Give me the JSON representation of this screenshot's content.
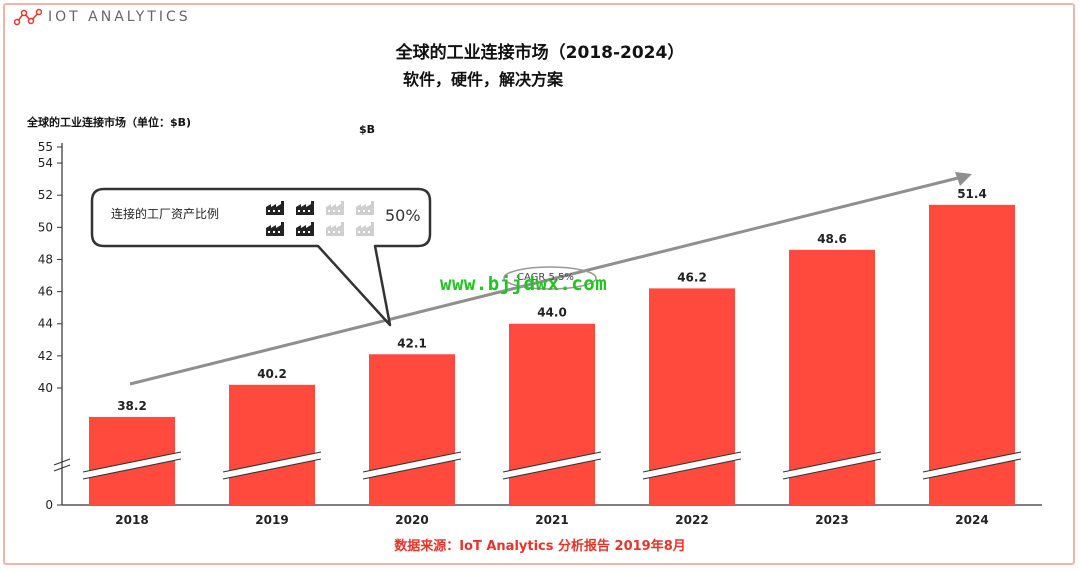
{
  "brand": {
    "logo_text": "IOT ANALYTICS",
    "logo_icon": "network-dots-icon"
  },
  "header": {
    "title": "全球的工业连接市场（2018-2024）",
    "subtitle": "软件，硬件，解决方案"
  },
  "unit_label": "全球的工业连接市场（单位：$B)",
  "unit_small": "$B",
  "callout": {
    "text": "连接的工厂资产比例",
    "percent": "50%",
    "icon": "factory-icon"
  },
  "cagr": {
    "label": "CAGR 5.5%"
  },
  "watermark": "www.bjjdwx.com",
  "source": "数据来源：IoT Analytics 分析报告 2019年8月",
  "colors": {
    "bar": "#ff4a3d",
    "arrow": "#8f8f8f",
    "source": "#e8332a",
    "watermark": "#22c422"
  },
  "chart_data": {
    "type": "bar",
    "title": "全球的工业连接市场（2018-2024）",
    "subtitle": "软件，硬件，解决方案",
    "ylabel": "全球的工业连接市场（单位：$B)",
    "categories": [
      "2018",
      "2019",
      "2020",
      "2021",
      "2022",
      "2023",
      "2024"
    ],
    "values": [
      38.2,
      40.2,
      42.1,
      44.0,
      46.2,
      48.6,
      51.4
    ],
    "data_labels": [
      "38.2",
      "40.2",
      "42.1",
      "44.0",
      "46.2",
      "48.6",
      "51.4"
    ],
    "y_ticks": [
      0,
      40,
      42,
      44,
      46,
      48,
      50,
      52,
      54,
      55
    ],
    "y_tick_labels": [
      "0",
      "40",
      "42",
      "44",
      "46",
      "48",
      "50",
      "52",
      "54",
      "55"
    ],
    "ylim": [
      0,
      55
    ],
    "axis_break": true,
    "grid": false,
    "legend": "none",
    "trend_arrow": true
  }
}
